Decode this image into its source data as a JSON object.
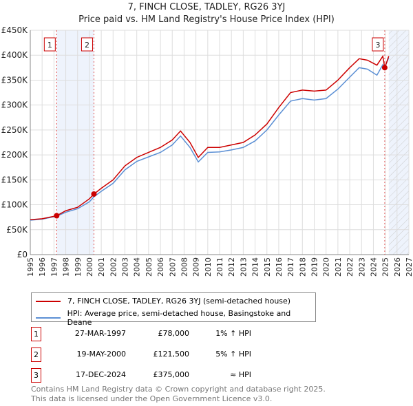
{
  "chart_data": {
    "type": "line",
    "title": "7, FINCH CLOSE, TADLEY, RG26 3YJ",
    "subtitle": "Price paid vs. HM Land Registry's House Price Index (HPI)",
    "xlim": [
      1995,
      2027
    ],
    "ylim": [
      0,
      450000
    ],
    "x_ticks": [
      "1995",
      "1996",
      "1997",
      "1998",
      "1999",
      "2000",
      "2001",
      "2002",
      "2003",
      "2004",
      "2005",
      "2006",
      "2007",
      "2008",
      "2009",
      "2010",
      "2011",
      "2012",
      "2013",
      "2014",
      "2015",
      "2016",
      "2017",
      "2018",
      "2019",
      "2020",
      "2021",
      "2022",
      "2023",
      "2024",
      "2025",
      "2026",
      "2027"
    ],
    "y_ticks": [
      {
        "v": 0,
        "label": "£0"
      },
      {
        "v": 50000,
        "label": "£50K"
      },
      {
        "v": 100000,
        "label": "£100K"
      },
      {
        "v": 150000,
        "label": "£150K"
      },
      {
        "v": 200000,
        "label": "£200K"
      },
      {
        "v": 250000,
        "label": "£250K"
      },
      {
        "v": 300000,
        "label": "£300K"
      },
      {
        "v": 350000,
        "label": "£350K"
      },
      {
        "v": 400000,
        "label": "£400K"
      },
      {
        "v": 450000,
        "label": "£450K"
      }
    ],
    "grid": true,
    "series": [
      {
        "name": "7, FINCH CLOSE, TADLEY, RG26 3YJ (semi-detached house)",
        "color": "#cc0000",
        "x": [
          1995,
          1996,
          1997.23,
          1998,
          1999,
          2000,
          2000.38,
          2001,
          2002,
          2003,
          2004,
          2005,
          2006,
          2007,
          2007.7,
          2008.5,
          2009.2,
          2010,
          2011,
          2012,
          2013,
          2014,
          2015,
          2016,
          2017,
          2018,
          2019,
          2020,
          2021,
          2022,
          2022.8,
          2023.5,
          2024.3,
          2024.8,
          2024.96,
          2025.3
        ],
        "y": [
          70000,
          72000,
          78000,
          88000,
          95000,
          112000,
          121500,
          133000,
          150000,
          178000,
          195000,
          205000,
          215000,
          230000,
          248000,
          225000,
          195000,
          215000,
          215000,
          220000,
          225000,
          240000,
          262000,
          295000,
          325000,
          330000,
          328000,
          330000,
          350000,
          375000,
          393000,
          390000,
          380000,
          398000,
          375000,
          398000
        ]
      },
      {
        "name": "HPI: Average price, semi-detached house, Basingstoke and Deane",
        "color": "#5b8fd4",
        "x": [
          1995,
          1996,
          1997.23,
          1998,
          1999,
          2000,
          2000.38,
          2001,
          2002,
          2003,
          2004,
          2005,
          2006,
          2007,
          2007.7,
          2008.5,
          2009.2,
          2010,
          2011,
          2012,
          2013,
          2014,
          2015,
          2016,
          2017,
          2018,
          2019,
          2020,
          2021,
          2022,
          2022.8,
          2023.5,
          2024.3,
          2024.8,
          2024.96,
          2025.3
        ],
        "y": [
          69000,
          71000,
          77000,
          85000,
          92000,
          106000,
          116000,
          127000,
          143000,
          170000,
          187000,
          196000,
          205000,
          220000,
          238000,
          215000,
          186000,
          205000,
          206000,
          210000,
          215000,
          228000,
          250000,
          280000,
          308000,
          313000,
          310000,
          313000,
          332000,
          356000,
          375000,
          372000,
          360000,
          381000,
          375000,
          395000
        ]
      }
    ],
    "sales": [
      {
        "num": "1",
        "x": 1997.23,
        "price": 78000,
        "date": "27-MAR-1997",
        "price_label": "£78,000",
        "hpi": "1% ↑ HPI"
      },
      {
        "num": "2",
        "x": 2000.38,
        "price": 121500,
        "date": "19-MAY-2000",
        "price_label": "£121,500",
        "hpi": "5% ↑ HPI"
      },
      {
        "num": "3",
        "x": 2024.96,
        "price": 375000,
        "date": "17-DEC-2024",
        "price_label": "£375,000",
        "hpi": "≈ HPI"
      }
    ],
    "forecast_start": 2025.3,
    "legend_position": "below"
  },
  "footer": {
    "line1": "Contains HM Land Registry data © Crown copyright and database right 2025.",
    "line2": "This data is licensed under the Open Government Licence v3.0."
  }
}
